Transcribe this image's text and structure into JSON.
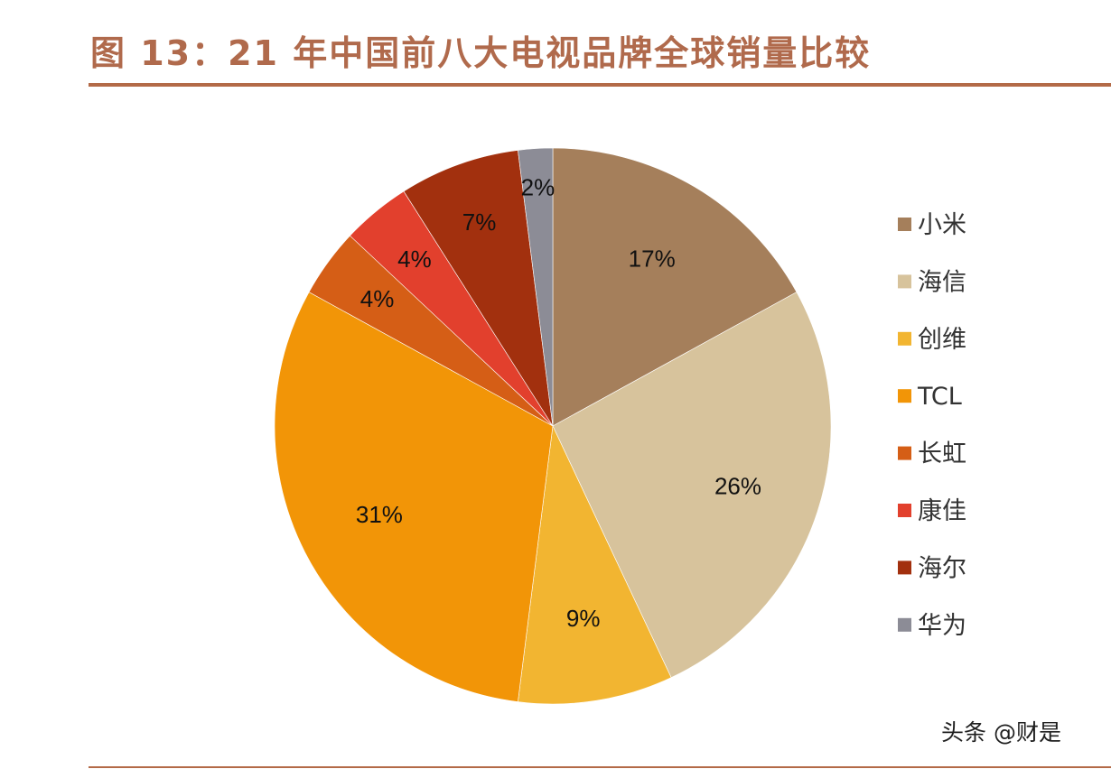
{
  "title": "图 13：21 年中国前八大电视品牌全球销量比较",
  "watermark": "头条 @财是",
  "chart_data": {
    "type": "pie",
    "title": "图 13：21 年中国前八大电视品牌全球销量比较",
    "legend_position": "right",
    "slices": [
      {
        "label": "小米",
        "value": 17,
        "display": "17%",
        "color": "#a57f5b"
      },
      {
        "label": "海信",
        "value": 26,
        "display": "26%",
        "color": "#d7c39c"
      },
      {
        "label": "创维",
        "value": 9,
        "display": "9%",
        "color": "#f2b531"
      },
      {
        "label": "TCL",
        "value": 31,
        "display": "31%",
        "color": "#f29507"
      },
      {
        "label": "长虹",
        "value": 4,
        "display": "4%",
        "color": "#d55e16"
      },
      {
        "label": "康佳",
        "value": 4,
        "display": "4%",
        "color": "#e2402d"
      },
      {
        "label": "海尔",
        "value": 7,
        "display": "7%",
        "color": "#a2300e"
      },
      {
        "label": "华为",
        "value": 2,
        "display": "2%",
        "color": "#8c8c96"
      }
    ]
  }
}
